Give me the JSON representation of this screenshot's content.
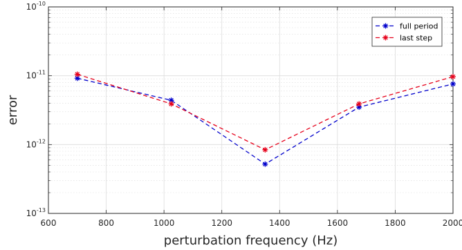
{
  "chart_data": {
    "type": "line",
    "xlabel": "perturbation frequency (Hz)",
    "ylabel": "error",
    "xlim": [
      600,
      2000
    ],
    "ylim": [
      1e-13,
      1e-10
    ],
    "yscale": "log",
    "xticks": [
      600,
      800,
      1000,
      1200,
      1400,
      1600,
      1800,
      2000
    ],
    "yticks": [
      {
        "base": "10",
        "exp": "-13",
        "value": 1e-13
      },
      {
        "base": "10",
        "exp": "-12",
        "value": 1e-12
      },
      {
        "base": "10",
        "exp": "-11",
        "value": 1e-11
      },
      {
        "base": "10",
        "exp": "-10",
        "value": 1e-10
      }
    ],
    "grid": true,
    "minor_grid": true,
    "legend_position": "top-right",
    "series": [
      {
        "name": "full period",
        "color": "#0000cc",
        "marker": "asterisk",
        "linestyle": "dashed",
        "x": [
          700,
          1025,
          1350,
          1675,
          2000
        ],
        "y": [
          9.2e-12,
          4.4e-12,
          5.2e-13,
          3.5e-12,
          7.6e-12
        ]
      },
      {
        "name": "last step",
        "color": "#e6001a",
        "marker": "asterisk",
        "linestyle": "dashed",
        "x": [
          700,
          1025,
          1350,
          1675,
          2000
        ],
        "y": [
          1.05e-11,
          3.9e-12,
          8.4e-13,
          3.9e-12,
          9.7e-12
        ]
      }
    ]
  }
}
